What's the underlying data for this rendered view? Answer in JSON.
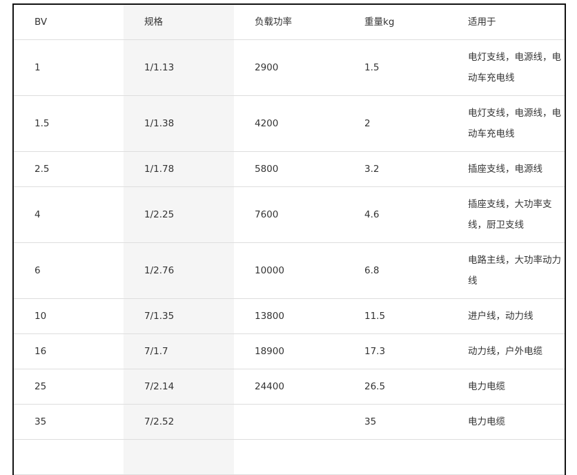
{
  "table": {
    "headers": [
      "BV",
      "规格",
      "负载功率",
      "重量kg",
      "适用于"
    ],
    "rows": [
      [
        "1",
        "1/1.13",
        "2900",
        "1.5",
        "电灯支线，电源线，电动车充电线"
      ],
      [
        "1.5",
        "1/1.38",
        "4200",
        "2",
        "电灯支线，电源线，电动车充电线"
      ],
      [
        "2.5",
        "1/1.78",
        "5800",
        "3.2",
        "插座支线，电源线"
      ],
      [
        "4",
        "1/2.25",
        "7600",
        "4.6",
        "插座支线，大功率支线，厨卫支线"
      ],
      [
        "6",
        "1/2.76",
        "10000",
        "6.8",
        "电路主线，大功率动力线"
      ],
      [
        "10",
        "7/1.35",
        "13800",
        "11.5",
        "进户线，动力线"
      ],
      [
        "16",
        "7/1.7",
        "18900",
        "17.3",
        "动力线，户外电缆"
      ],
      [
        "25",
        "7/2.14",
        "24400",
        "26.5",
        "电力电缆"
      ],
      [
        "35",
        "7/2.52",
        "",
        "35",
        "电力电缆"
      ],
      [
        "",
        "",
        "",
        "",
        ""
      ]
    ]
  }
}
